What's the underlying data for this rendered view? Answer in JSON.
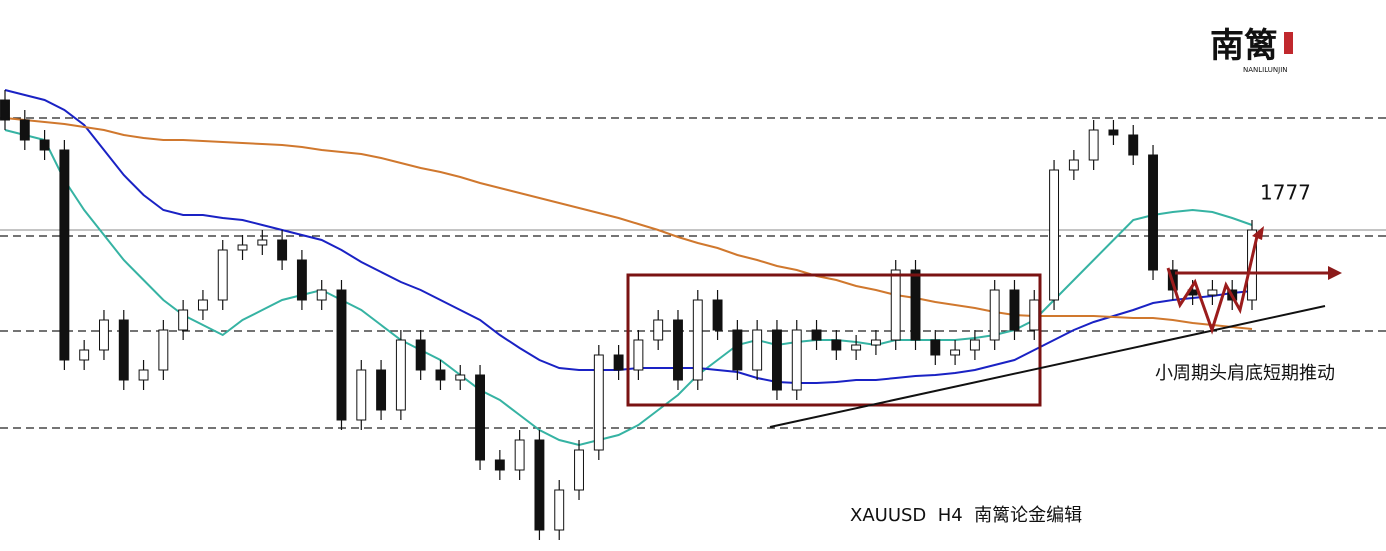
{
  "chart_data": {
    "type": "candlestick",
    "logo": {
      "title": "南篱",
      "subtitle": "NANLILUNJIN"
    },
    "annotations": [
      "1777",
      "小周期头肩底短期推动",
      "XAUUSD  H4  南篱论金编辑"
    ],
    "ylim": [
      0,
      551
    ],
    "levels": [
      433,
      315,
      220,
      123
    ],
    "open": [
      451,
      431,
      411,
      401,
      191,
      201,
      231,
      171,
      181,
      221,
      241,
      251,
      301,
      306,
      311,
      291,
      251,
      261,
      131,
      181,
      141,
      211,
      181,
      171,
      176,
      91,
      81,
      111,
      21,
      61,
      101,
      196,
      181,
      211,
      231,
      171,
      251,
      221,
      181,
      221,
      161,
      221,
      211,
      201,
      206,
      211,
      281,
      211,
      196,
      201,
      211,
      261,
      221,
      251,
      381,
      391,
      421,
      416,
      396,
      281,
      261,
      256,
      261,
      251
    ],
    "high": [
      461,
      441,
      421,
      411,
      211,
      241,
      241,
      191,
      231,
      251,
      261,
      311,
      316,
      321,
      321,
      301,
      271,
      271,
      191,
      191,
      221,
      221,
      191,
      186,
      186,
      101,
      121,
      121,
      71,
      111,
      206,
      206,
      221,
      241,
      241,
      261,
      261,
      231,
      231,
      231,
      231,
      231,
      221,
      216,
      221,
      291,
      291,
      221,
      211,
      221,
      271,
      271,
      261,
      391,
      401,
      431,
      431,
      426,
      406,
      291,
      271,
      271,
      271,
      331
    ],
    "low": [
      421,
      401,
      391,
      181,
      181,
      191,
      161,
      161,
      171,
      211,
      231,
      241,
      291,
      296,
      281,
      241,
      241,
      121,
      121,
      131,
      131,
      171,
      161,
      161,
      81,
      71,
      71,
      11,
      11,
      51,
      91,
      171,
      171,
      201,
      161,
      161,
      211,
      171,
      171,
      151,
      151,
      201,
      191,
      191,
      196,
      201,
      201,
      186,
      186,
      191,
      201,
      211,
      211,
      241,
      371,
      381,
      406,
      386,
      271,
      251,
      246,
      246,
      241,
      241
    ],
    "close": [
      431,
      411,
      401,
      191,
      201,
      231,
      171,
      181,
      221,
      241,
      251,
      301,
      306,
      311,
      291,
      251,
      261,
      131,
      181,
      141,
      211,
      181,
      171,
      176,
      91,
      81,
      111,
      21,
      61,
      101,
      196,
      181,
      211,
      231,
      171,
      251,
      221,
      181,
      221,
      161,
      221,
      211,
      201,
      206,
      211,
      281,
      211,
      196,
      201,
      211,
      261,
      221,
      251,
      381,
      391,
      421,
      416,
      396,
      281,
      261,
      256,
      261,
      251,
      321
    ],
    "series": [
      {
        "color": "#36b3a3",
        "values": [
          421,
          416,
          411,
          371,
          341,
          316,
          291,
          271,
          251,
          236,
          226,
          216,
          231,
          241,
          251,
          256,
          261,
          251,
          241,
          226,
          211,
          201,
          191,
          176,
          161,
          151,
          136,
          121,
          111,
          106,
          111,
          116,
          126,
          141,
          156,
          176,
          191,
          206,
          211,
          206,
          209,
          211,
          211,
          209,
          206,
          211,
          211,
          211,
          211,
          213,
          216,
          221,
          231,
          251,
          271,
          291,
          311,
          331,
          336,
          339,
          341,
          339,
          333,
          326
        ]
      },
      {
        "color": "#1a22c4",
        "values": [
          461,
          456,
          451,
          441,
          426,
          401,
          376,
          356,
          341,
          336,
          336,
          333,
          331,
          326,
          321,
          316,
          311,
          301,
          289,
          279,
          269,
          261,
          251,
          241,
          231,
          216,
          203,
          191,
          183,
          181,
          181,
          181,
          183,
          183,
          183,
          183,
          181,
          179,
          173,
          169,
          168,
          168,
          169,
          171,
          171,
          173,
          175,
          176,
          178,
          181,
          186,
          191,
          201,
          211,
          221,
          229,
          235,
          241,
          248,
          251,
          253,
          255,
          258,
          260
        ]
      },
      {
        "color": "#d0782e",
        "values": [
          433,
          431,
          429,
          427,
          424,
          421,
          416,
          413,
          411,
          411,
          410,
          409,
          408,
          407,
          406,
          404,
          401,
          399,
          397,
          393,
          388,
          383,
          379,
          374,
          368,
          363,
          358,
          353,
          348,
          343,
          338,
          333,
          327,
          321,
          314,
          308,
          303,
          296,
          291,
          285,
          281,
          275,
          271,
          265,
          261,
          256,
          253,
          249,
          246,
          243,
          239,
          236,
          235,
          235,
          235,
          235,
          234,
          233,
          233,
          231,
          228,
          226,
          224,
          222
        ]
      }
    ]
  }
}
